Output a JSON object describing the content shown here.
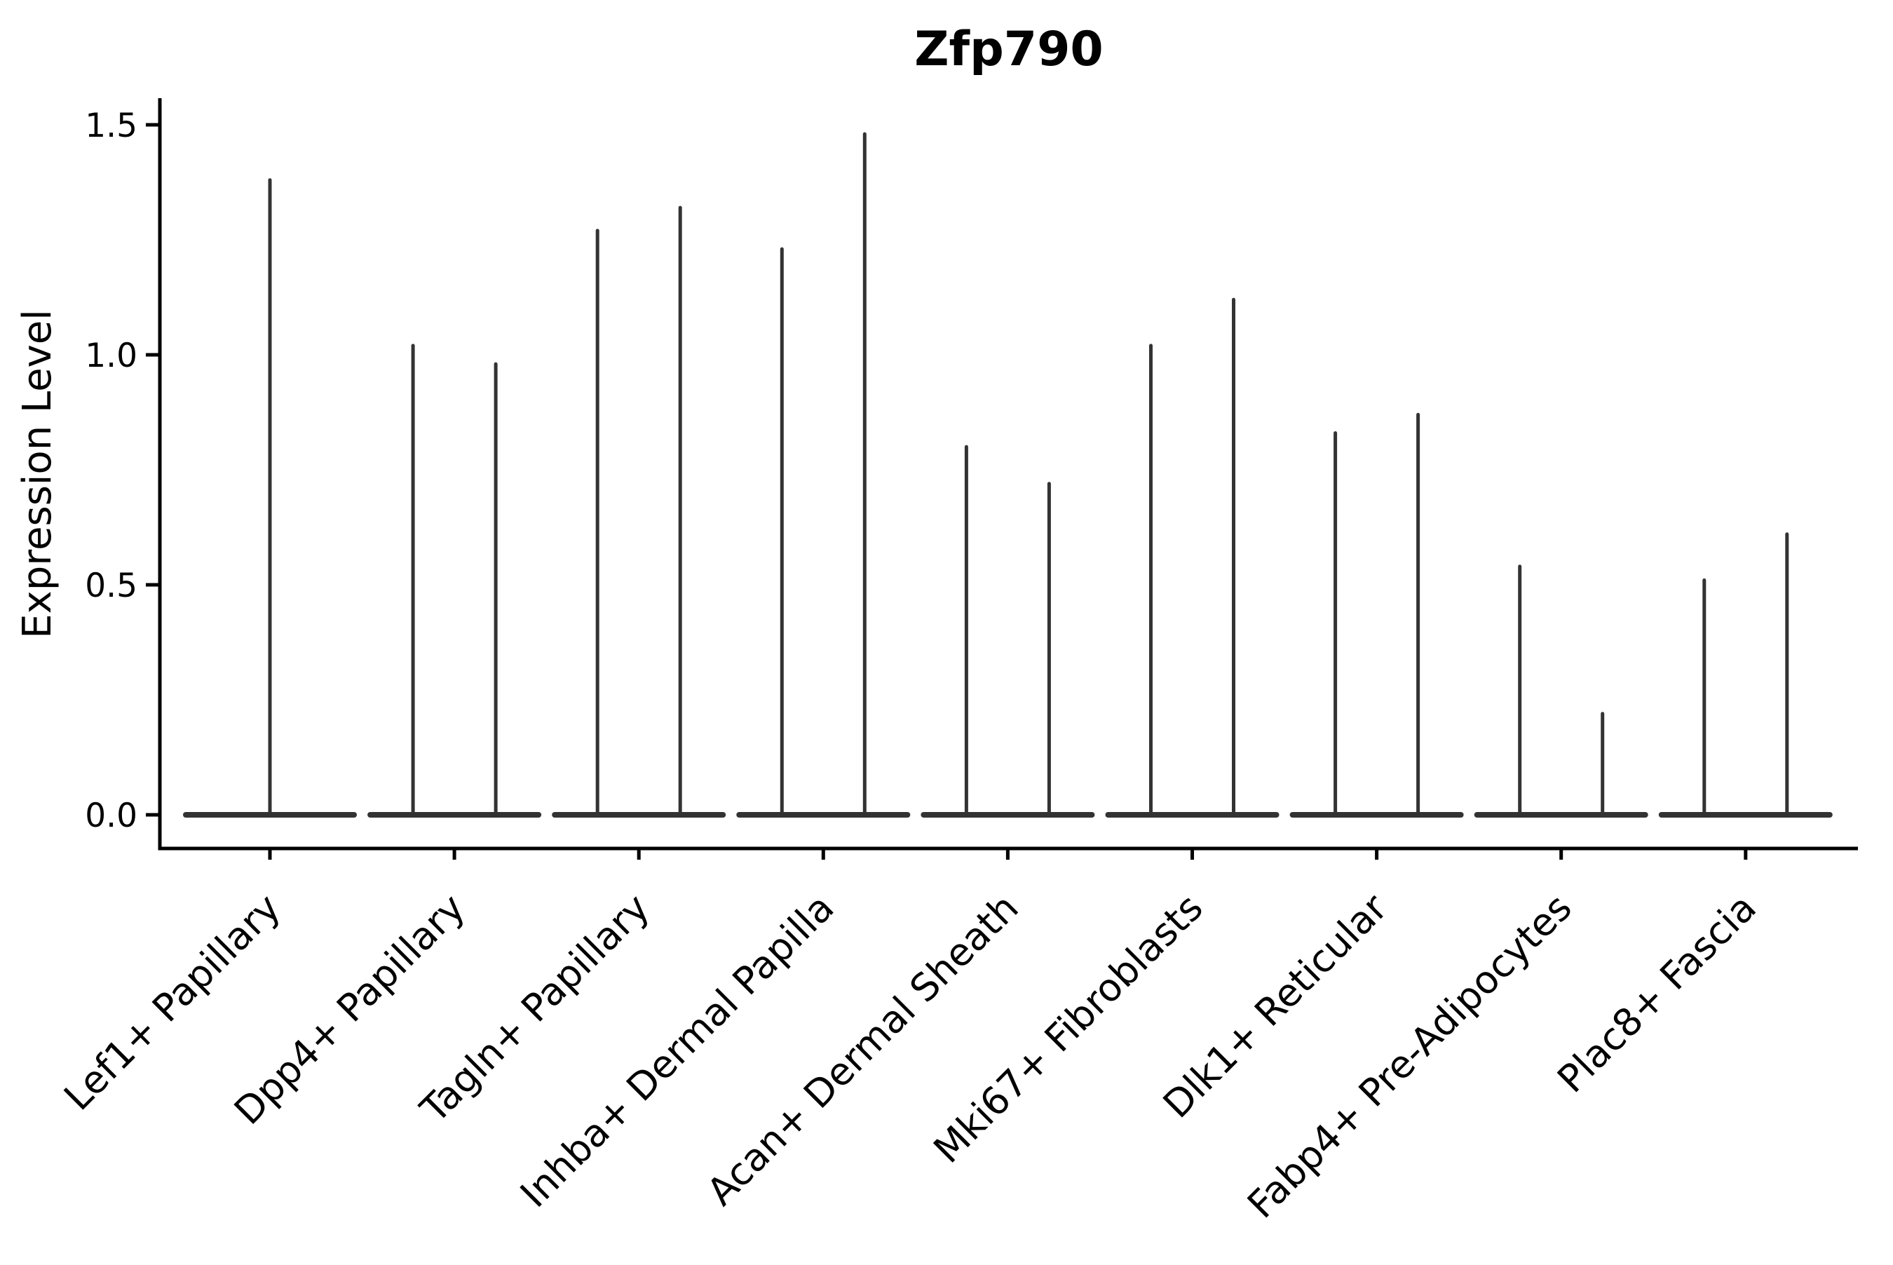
{
  "chart_data": {
    "type": "violin",
    "title": "Zfp790",
    "xlabel": "",
    "ylabel": "Expression Level",
    "categories": [
      "Lef1+ Papillary",
      "Dpp4+ Papillary",
      "Tagln+ Papillary",
      "Inhba+ Dermal Papilla",
      "Acan+ Dermal Sheath",
      "Mki67+ Fibroblasts",
      "Dlk1+ Reticular",
      "Fabp4+ Pre-Adipocytes",
      "Plac8+ Fascia"
    ],
    "series": [
      {
        "category": "Lef1+ Papillary",
        "violin_count": 1,
        "max_expression": [
          1.38
        ]
      },
      {
        "category": "Dpp4+ Papillary",
        "violin_count": 2,
        "max_expression": [
          1.02,
          0.98
        ]
      },
      {
        "category": "Tagln+ Papillary",
        "violin_count": 2,
        "max_expression": [
          1.27,
          1.32
        ]
      },
      {
        "category": "Inhba+ Dermal Papilla",
        "violin_count": 2,
        "max_expression": [
          1.23,
          1.48
        ]
      },
      {
        "category": "Acan+ Dermal Sheath",
        "violin_count": 2,
        "max_expression": [
          0.8,
          0.72
        ]
      },
      {
        "category": "Mki67+ Fibroblasts",
        "violin_count": 2,
        "max_expression": [
          1.02,
          1.12
        ]
      },
      {
        "category": "Dlk1+ Reticular",
        "violin_count": 2,
        "max_expression": [
          0.83,
          0.87
        ]
      },
      {
        "category": "Fabp4+ Pre-Adipocytes",
        "violin_count": 2,
        "max_expression": [
          0.54,
          0.22
        ]
      },
      {
        "category": "Plac8+ Fascia",
        "violin_count": 2,
        "max_expression": [
          0.51,
          0.61
        ]
      }
    ],
    "baseline_value": 0.0,
    "yticks": [
      0.0,
      0.5,
      1.0,
      1.5
    ],
    "ytick_labels": [
      "0.0",
      "0.5",
      "1.0",
      "1.5"
    ],
    "ylim": [
      -0.07,
      1.56
    ],
    "grid": false,
    "legend_position": "none",
    "style": {
      "violin_color": "#333333",
      "axis_color": "#000000",
      "text_color": "#000000",
      "background": "#ffffff"
    }
  }
}
